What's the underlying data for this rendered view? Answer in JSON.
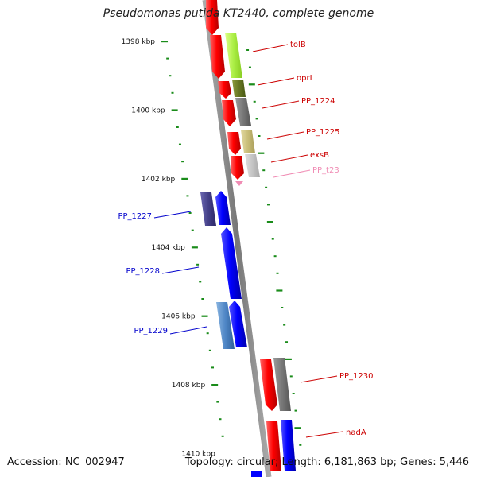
{
  "header": {
    "title": "Pseudomonas putida KT2440, complete genome"
  },
  "footer": {
    "accession": "Accession: NC_002947",
    "topology": "Topology: circular; Length: 6,181,863 bp; Genes: 5,446"
  },
  "scale": {
    "ticks": [
      {
        "kbp": 1398,
        "label": "1398 kbp"
      },
      {
        "kbp": 1400,
        "label": "1400 kbp"
      },
      {
        "kbp": 1402,
        "label": "1402 kbp"
      },
      {
        "kbp": 1404,
        "label": "1404 kbp"
      },
      {
        "kbp": 1406,
        "label": "1406 kbp"
      },
      {
        "kbp": 1408,
        "label": "1408 kbp"
      },
      {
        "kbp": 1410,
        "label": "1410 kbp"
      }
    ]
  },
  "genes": [
    {
      "label": "tolB",
      "strand": "forward",
      "color": "#cc0000"
    },
    {
      "label": "oprL",
      "strand": "forward",
      "color": "#cc0000"
    },
    {
      "label": "PP_1224",
      "strand": "forward",
      "color": "#cc0000"
    },
    {
      "label": "PP_1225",
      "strand": "forward",
      "color": "#cc0000"
    },
    {
      "label": "exsB",
      "strand": "forward",
      "color": "#cc0000"
    },
    {
      "label": "PP_t23",
      "strand": "forward",
      "color": "#f08cb4"
    },
    {
      "label": "PP_1227",
      "strand": "reverse",
      "color": "#0000cc"
    },
    {
      "label": "PP_1228",
      "strand": "reverse",
      "color": "#0000cc"
    },
    {
      "label": "PP_1229",
      "strand": "reverse",
      "color": "#0000cc"
    },
    {
      "label": "PP_1230",
      "strand": "forward",
      "color": "#cc0000"
    },
    {
      "label": "nadA",
      "strand": "forward",
      "color": "#cc0000"
    }
  ]
}
